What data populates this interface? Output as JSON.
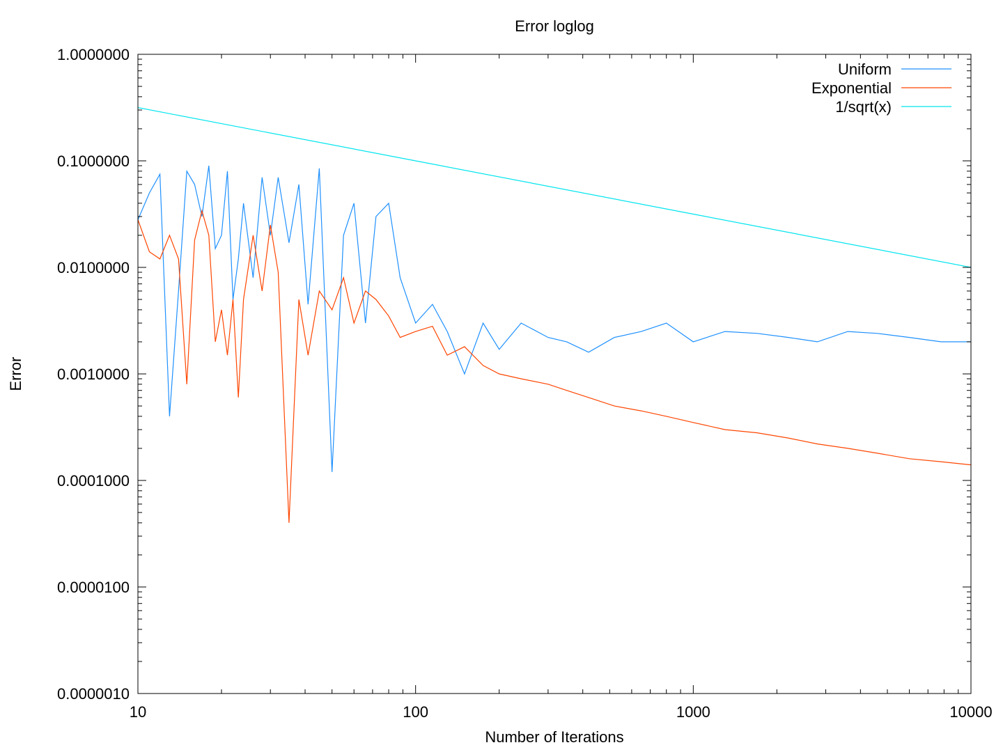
{
  "chart_data": {
    "type": "line",
    "title": "Error loglog",
    "xlabel": "Number of Iterations",
    "ylabel": "Error",
    "xscale": "log",
    "yscale": "log",
    "xlim": [
      10,
      10000
    ],
    "ylim": [
      1e-06,
      1
    ],
    "x_ticks": [
      10,
      100,
      1000,
      10000
    ],
    "x_tick_labels": [
      "10",
      "100",
      "1000",
      "10000"
    ],
    "y_ticks": [
      1e-06,
      1e-05,
      0.0001,
      0.001,
      0.01,
      0.1,
      1
    ],
    "y_tick_labels": [
      "0.0000010",
      "0.0000100",
      "0.0001000",
      "0.0010000",
      "0.0100000",
      "0.1000000",
      "1.0000000"
    ],
    "grid": false,
    "legend_position": "top-right",
    "series": [
      {
        "name": "Uniform",
        "color": "#1e90ff",
        "x": [
          10,
          11,
          12,
          13,
          14,
          15,
          16,
          17,
          18,
          19,
          20,
          21,
          22,
          23,
          24,
          26,
          28,
          30,
          32,
          35,
          38,
          41,
          45,
          50,
          55,
          60,
          66,
          72,
          80,
          88,
          100,
          115,
          130,
          150,
          175,
          200,
          240,
          300,
          350,
          420,
          520,
          650,
          800,
          1000,
          1300,
          1700,
          2200,
          2800,
          3600,
          4600,
          6000,
          7800,
          10000
        ],
        "y": [
          0.028,
          0.05,
          0.075,
          0.0004,
          0.006,
          0.08,
          0.06,
          0.03,
          0.09,
          0.015,
          0.02,
          0.08,
          0.005,
          0.012,
          0.04,
          0.008,
          0.07,
          0.02,
          0.07,
          0.017,
          0.06,
          0.0045,
          0.085,
          0.00012,
          0.02,
          0.04,
          0.003,
          0.03,
          0.04,
          0.008,
          0.003,
          0.0045,
          0.0025,
          0.001,
          0.003,
          0.0017,
          0.003,
          0.0022,
          0.002,
          0.0016,
          0.0022,
          0.0025,
          0.003,
          0.002,
          0.0025,
          0.0024,
          0.0022,
          0.002,
          0.0025,
          0.0024,
          0.0022,
          0.002,
          0.002
        ]
      },
      {
        "name": "Exponential",
        "color": "#ff4500",
        "x": [
          10,
          11,
          12,
          13,
          14,
          15,
          16,
          17,
          18,
          19,
          20,
          21,
          22,
          23,
          24,
          26,
          28,
          30,
          32,
          35,
          38,
          41,
          45,
          50,
          55,
          60,
          66,
          72,
          80,
          88,
          100,
          115,
          130,
          150,
          175,
          200,
          240,
          300,
          350,
          420,
          520,
          650,
          800,
          1000,
          1300,
          1700,
          2200,
          2800,
          3600,
          4600,
          6000,
          7800,
          10000
        ],
        "y": [
          0.028,
          0.014,
          0.012,
          0.02,
          0.012,
          0.0008,
          0.018,
          0.034,
          0.02,
          0.002,
          0.004,
          0.0015,
          0.005,
          0.0006,
          0.005,
          0.02,
          0.006,
          0.025,
          0.009,
          4e-05,
          0.005,
          0.0015,
          0.006,
          0.004,
          0.008,
          0.003,
          0.006,
          0.005,
          0.0035,
          0.0022,
          0.0025,
          0.0028,
          0.0015,
          0.0018,
          0.0012,
          0.001,
          0.0009,
          0.0008,
          0.0007,
          0.0006,
          0.0005,
          0.00045,
          0.0004,
          0.00035,
          0.0003,
          0.00028,
          0.00025,
          0.00022,
          0.0002,
          0.00018,
          0.00016,
          0.00015,
          0.00014
        ]
      },
      {
        "name": "1/sqrt(x)",
        "color": "#00e5ee",
        "function": "1/sqrt(x)",
        "x": [
          10,
          100,
          1000,
          10000
        ],
        "y": [
          0.31623,
          0.1,
          0.031623,
          0.01
        ]
      }
    ]
  }
}
